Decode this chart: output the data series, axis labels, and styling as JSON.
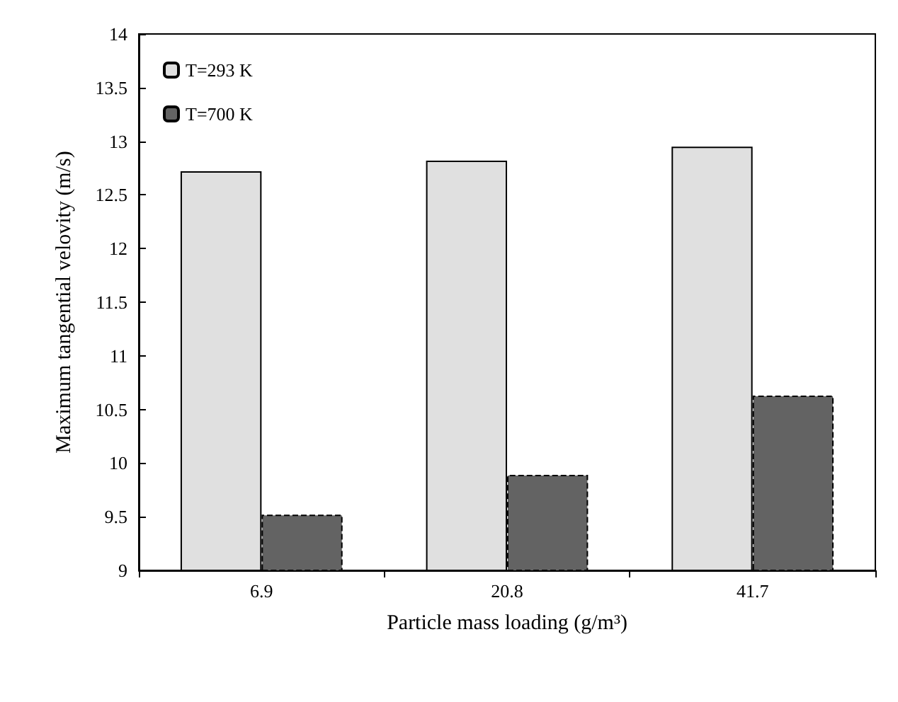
{
  "chart_data": {
    "type": "bar",
    "xlabel": "Particle mass loading (g/m³)",
    "ylabel": "Maximum tangential velovity (m/s)",
    "categories": [
      "6.9",
      "20.8",
      "41.7"
    ],
    "series": [
      {
        "name": "T=293 K",
        "color": "#e0e0e0",
        "values": [
          12.72,
          12.82,
          12.95
        ]
      },
      {
        "name": "T=700 K",
        "color": "#636363",
        "values": [
          9.52,
          9.89,
          10.63
        ],
        "line_style": "dashed"
      }
    ],
    "ylim": [
      9,
      14
    ],
    "yticks": [
      9,
      9.5,
      10,
      10.5,
      11,
      11.5,
      12,
      12.5,
      13,
      13.5,
      14
    ],
    "grid": false,
    "legend": "top left"
  }
}
